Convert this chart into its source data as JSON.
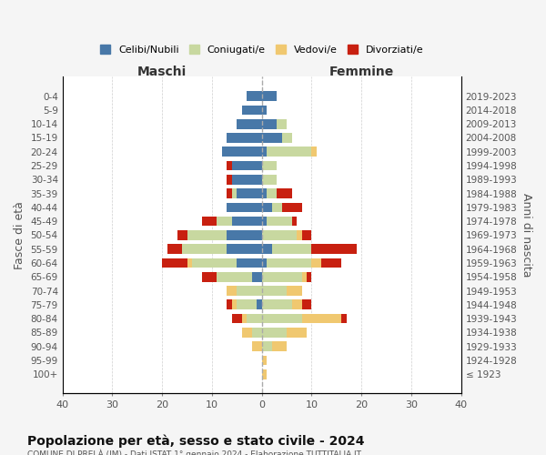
{
  "age_groups": [
    "100+",
    "95-99",
    "90-94",
    "85-89",
    "80-84",
    "75-79",
    "70-74",
    "65-69",
    "60-64",
    "55-59",
    "50-54",
    "45-49",
    "40-44",
    "35-39",
    "30-34",
    "25-29",
    "20-24",
    "15-19",
    "10-14",
    "5-9",
    "0-4"
  ],
  "birth_years": [
    "≤ 1923",
    "1924-1928",
    "1929-1933",
    "1934-1938",
    "1939-1943",
    "1944-1948",
    "1949-1953",
    "1954-1958",
    "1959-1963",
    "1964-1968",
    "1969-1973",
    "1974-1978",
    "1979-1983",
    "1984-1988",
    "1989-1993",
    "1994-1998",
    "1999-2003",
    "2004-2008",
    "2009-2013",
    "2014-2018",
    "2019-2023"
  ],
  "male": {
    "celibi": [
      0,
      0,
      0,
      0,
      0,
      1,
      0,
      2,
      5,
      7,
      7,
      6,
      7,
      5,
      6,
      6,
      8,
      7,
      5,
      4,
      3
    ],
    "coniugati": [
      0,
      0,
      0,
      2,
      3,
      4,
      5,
      7,
      9,
      9,
      8,
      3,
      0,
      1,
      0,
      0,
      0,
      0,
      0,
      0,
      0
    ],
    "vedovi": [
      0,
      0,
      2,
      2,
      1,
      1,
      2,
      0,
      1,
      0,
      0,
      0,
      0,
      0,
      0,
      0,
      0,
      0,
      0,
      0,
      0
    ],
    "divorziati": [
      0,
      0,
      0,
      0,
      2,
      1,
      0,
      3,
      5,
      3,
      2,
      3,
      0,
      1,
      1,
      1,
      0,
      0,
      0,
      0,
      0
    ]
  },
  "female": {
    "nubili": [
      0,
      0,
      0,
      0,
      0,
      0,
      0,
      0,
      1,
      2,
      0,
      1,
      2,
      1,
      0,
      0,
      1,
      4,
      3,
      1,
      3
    ],
    "coniugate": [
      0,
      0,
      2,
      5,
      8,
      6,
      5,
      8,
      9,
      8,
      7,
      5,
      2,
      2,
      3,
      3,
      9,
      2,
      2,
      0,
      0
    ],
    "vedove": [
      1,
      1,
      3,
      4,
      8,
      2,
      3,
      1,
      2,
      0,
      1,
      0,
      0,
      0,
      0,
      0,
      1,
      0,
      0,
      0,
      0
    ],
    "divorziate": [
      0,
      0,
      0,
      0,
      1,
      2,
      0,
      1,
      4,
      9,
      2,
      1,
      4,
      3,
      0,
      0,
      0,
      0,
      0,
      0,
      0
    ]
  },
  "colors": {
    "celibi_nubili": "#4878A8",
    "coniugati": "#C8D8A0",
    "vedovi": "#F0C870",
    "divorziati": "#C82010"
  },
  "xlim": 40,
  "title": "Popolazione per età, sesso e stato civile - 2024",
  "subtitle": "COMUNE DI PRELÀ (IM) - Dati ISTAT 1° gennaio 2024 - Elaborazione TUTTITALIA.IT",
  "ylabel_left": "Fasce di età",
  "ylabel_right": "Anni di nascita",
  "xlabel_left": "Maschi",
  "xlabel_right": "Femmine",
  "background_color": "#f5f5f5",
  "plot_bg": "#ffffff"
}
